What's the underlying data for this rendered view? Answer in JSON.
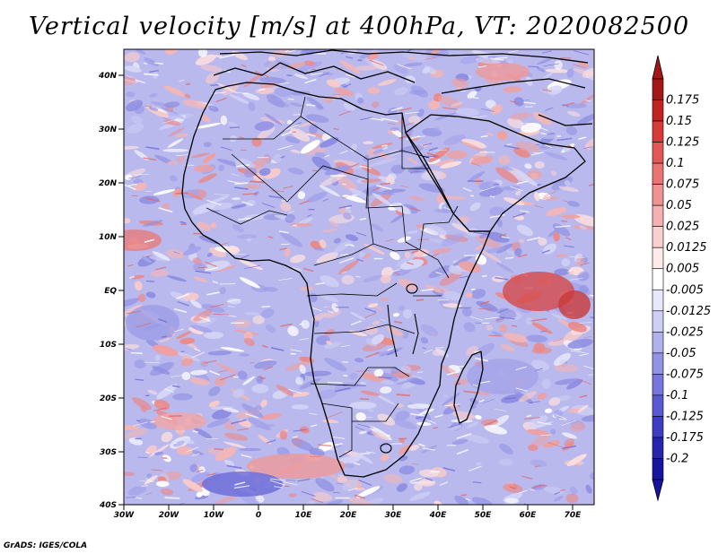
{
  "title": "Vertical velocity [m/s] at 400hPa, VT: 2020082500",
  "footer": "GrADS: IGES/COLA",
  "lat_labels": [
    "40N",
    "30N",
    "20N",
    "10N",
    "EQ",
    "10S",
    "20S",
    "30S",
    "40S"
  ],
  "lon_labels": [
    "30W",
    "20W",
    "10W",
    "0",
    "10E",
    "20E",
    "30E",
    "40E",
    "50E",
    "60E",
    "70E"
  ],
  "colorbar": {
    "labels": [
      "0.175",
      "0.15",
      "0.125",
      "0.1",
      "0.075",
      "0.05",
      "0.025",
      "0.0125",
      "0.005",
      "-0.005",
      "-0.0125",
      "-0.025",
      "-0.05",
      "-0.075",
      "-0.1",
      "-0.125",
      "-0.175",
      "-0.2"
    ],
    "colors": [
      "#a51616",
      "#c22222",
      "#d83a3a",
      "#e25757",
      "#ea7474",
      "#f09292",
      "#f5b1b1",
      "#f9cfcf",
      "#fdeaea",
      "#ffffff",
      "#e8e8fb",
      "#cfcff5",
      "#b1b1ee",
      "#9393e6",
      "#7676de",
      "#5959d2",
      "#3d3dc2",
      "#2525ad",
      "#1515a0"
    ]
  }
}
